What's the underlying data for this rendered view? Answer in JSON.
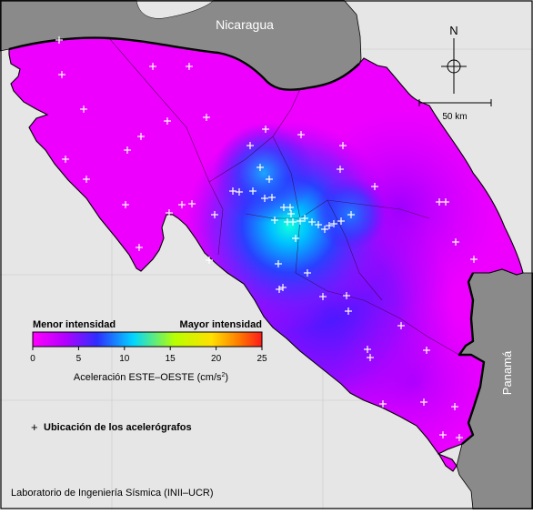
{
  "map": {
    "neighbors": {
      "north": "Nicaragua",
      "south_east": "Panamá"
    },
    "north_arrow_label": "N",
    "scale_label": "50 km"
  },
  "legend": {
    "low_label": "Menor intensidad",
    "high_label": "Mayor intensidad",
    "ticks": [
      "0",
      "5",
      "10",
      "15",
      "20",
      "25"
    ],
    "range": [
      0,
      25
    ],
    "axis_title_main": "Aceleración ESTE–OESTE (cm/s",
    "axis_title_sup": "2",
    "axis_title_close": ")",
    "colors": [
      "#ff00ff",
      "#b400ff",
      "#2e2eff",
      "#00d6ff",
      "#b8ff00",
      "#ffe000",
      "#ff7a00",
      "#ff1a1a"
    ],
    "station_marker": "+",
    "station_label": "Ubicación de los acelerógrafos"
  },
  "credit": "Laboratorio de Ingeniería Sísmica (INII–UCR)",
  "colors": {
    "sea": "#e6e6e6",
    "neighbor_land": "#8a8a8a",
    "background_field": "#ee00ff",
    "station": "#ffffff"
  }
}
